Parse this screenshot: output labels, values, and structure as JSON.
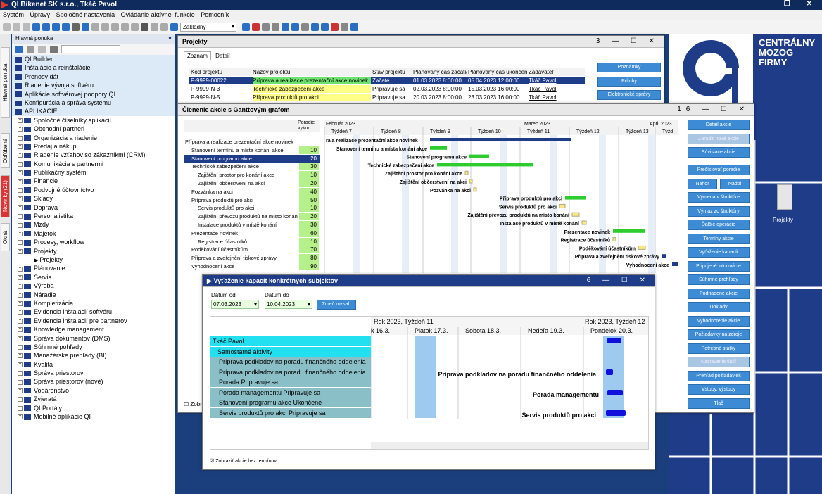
{
  "app": {
    "title": "QI Bikenet SK s.r.o., Tkáč Pavol"
  },
  "menu": [
    "Systém",
    "Úpravy",
    "Spoločné nastavenia",
    "Ovládanie aktívnej funkcie",
    "Pomocník"
  ],
  "toolbar": {
    "profile": "Základný"
  },
  "vtabs": [
    "Hlavná ponuka",
    "Obľúbené",
    "Novinky (21)",
    "Okná"
  ],
  "nav": {
    "header": "Hlavná ponuka",
    "items": [
      {
        "label": "QI Builder",
        "lvl": 0,
        "hl": true
      },
      {
        "label": "Inštalácie a reinštalácie",
        "lvl": 0,
        "hl": true
      },
      {
        "label": "Prenosy dát",
        "lvl": 0,
        "hl": true
      },
      {
        "label": "Riadenie vývoja softvéru",
        "lvl": 0,
        "hl": true
      },
      {
        "label": "Aplikácie softvérovej podpory QI",
        "lvl": 0,
        "hl": true
      },
      {
        "label": "Konfigurácia a správa systému",
        "lvl": 0,
        "hl": true
      },
      {
        "label": "APLIKÁCIE",
        "lvl": 0,
        "hl": true
      },
      {
        "label": "Spoločné číselníky aplikácií",
        "lvl": 1
      },
      {
        "label": "Obchodní partneri",
        "lvl": 1
      },
      {
        "label": "Organizácia a riadenie",
        "lvl": 1
      },
      {
        "label": "Predaj a nákup",
        "lvl": 1
      },
      {
        "label": "Riadenie vzťahov so zákazníkmi (CRM)",
        "lvl": 1
      },
      {
        "label": "Komunikácia s partnermi",
        "lvl": 1
      },
      {
        "label": "Publikačný systém",
        "lvl": 1
      },
      {
        "label": "Financie",
        "lvl": 1
      },
      {
        "label": "Podvojné účtovníctvo",
        "lvl": 1
      },
      {
        "label": "Sklady",
        "lvl": 1
      },
      {
        "label": "Doprava",
        "lvl": 1
      },
      {
        "label": "Personalistika",
        "lvl": 1
      },
      {
        "label": "Mzdy",
        "lvl": 1
      },
      {
        "label": "Majetok",
        "lvl": 1
      },
      {
        "label": "Procesy, workflow",
        "lvl": 1
      },
      {
        "label": "Projekty",
        "lvl": 1
      },
      {
        "label": "Projekty",
        "lvl": 2
      },
      {
        "label": "Plánovanie",
        "lvl": 1
      },
      {
        "label": "Servis",
        "lvl": 1
      },
      {
        "label": "Výroba",
        "lvl": 1
      },
      {
        "label": "Náradie",
        "lvl": 1
      },
      {
        "label": "Kompletizácia",
        "lvl": 1
      },
      {
        "label": "Evidencia inštalácií softvéru",
        "lvl": 1
      },
      {
        "label": "Evidencia inštalácií pre partnerov",
        "lvl": 1
      },
      {
        "label": "Knowledge management",
        "lvl": 1
      },
      {
        "label": "Správa dokumentov (DMS)",
        "lvl": 1
      },
      {
        "label": "Súhrnné pohľady",
        "lvl": 1
      },
      {
        "label": "Manažérske prehľady (BI)",
        "lvl": 1
      },
      {
        "label": "Kvalita",
        "lvl": 1
      },
      {
        "label": "Správa priestorov",
        "lvl": 1
      },
      {
        "label": "Správa priestorov (nové)",
        "lvl": 1
      },
      {
        "label": "Vodárenstvo",
        "lvl": 1
      },
      {
        "label": "Zvieratá",
        "lvl": 1
      },
      {
        "label": "QI Portály",
        "lvl": 1
      },
      {
        "label": "Mobilné aplikácie QI",
        "lvl": 1
      }
    ]
  },
  "brand": [
    "CENTRÁLNY",
    "MOZOG",
    "FIRMY"
  ],
  "desktop_icon": "Projekty",
  "projekty": {
    "title": "Projekty",
    "count": "3",
    "tabs": [
      "Zoznam",
      "Detail"
    ],
    "cols": [
      "Kód projektu",
      "Názov projektu",
      "Stav projektu",
      "Plánovaný čas začatia",
      "Plánovaný čas ukončenia",
      "Zadávateľ"
    ],
    "rows": [
      [
        "P-9999-00022",
        "Príprava a realizace prezentační akce novinek",
        "Začaté",
        "01.03.2023 8:00:00",
        "05.04.2023 12:00:00",
        "Tkáč Pavol"
      ],
      [
        "P-9999-N-3",
        "Technické zabezpečení akce",
        "Pripravuje sa",
        "02.03.2023 8:00:00",
        "15.03.2023 16:00:00",
        "Tkáč Pavol"
      ],
      [
        "P-9999-N-5",
        "Příprava produktů pro akci",
        "Pripravuje sa",
        "20.03.2023 8:00:00",
        "23.03.2023 16:00:00",
        "Tkáč Pavol"
      ]
    ],
    "buttons": [
      "Poznámky",
      "Prílohy",
      "Elektronické správy"
    ]
  },
  "gantt": {
    "title": "Členenie akcie s Ganttovým grafom",
    "count": "16",
    "col2": "Poradie vykon...",
    "months": [
      "Február 2023",
      "Marec 2023",
      "April 2023"
    ],
    "weeks": [
      "Týždeň 7",
      "Týždeň 8",
      "Týždeň 9",
      "Týždeň 10",
      "Týždeň 11",
      "Týždeň 12",
      "Týždeň 13",
      "Týžd"
    ],
    "rows": [
      {
        "name": "Příprava a realizace prezentační akce novinek",
        "ord": "",
        "lvl": 0,
        "bar": "ra a realizace prezentační akce novinek"
      },
      {
        "name": "Stanovení termínu a místa konání akce",
        "ord": "10",
        "lvl": 1,
        "bar": "Stanovení termínu a místa konání akce"
      },
      {
        "name": "Stanovení programu akce",
        "ord": "20",
        "lvl": 1,
        "sel": true,
        "bar": "Stanovení programu akce"
      },
      {
        "name": "Technické zabezpečení akce",
        "ord": "30",
        "lvl": 1,
        "bar": "Technické zabezpečení akce"
      },
      {
        "name": "Zajištění prostor pro konání akce",
        "ord": "10",
        "lvl": 2,
        "bar": "Zajištění prostor pro konání akce"
      },
      {
        "name": "Zajištění občerstvení na akci",
        "ord": "20",
        "lvl": 2,
        "bar": "Zajištění občerstvení na akci"
      },
      {
        "name": "Pozvánka na akci",
        "ord": "40",
        "lvl": 1,
        "bar": "Pozvánka na akci"
      },
      {
        "name": "Příprava produktů pro akci",
        "ord": "50",
        "lvl": 1,
        "bar": "Příprava produktů pro akci"
      },
      {
        "name": "Servis produktů pro akci",
        "ord": "10",
        "lvl": 2,
        "bar": "Servis produktů pro akci"
      },
      {
        "name": "Zajištění převozu produktů na místo konání",
        "ord": "20",
        "lvl": 2,
        "bar": "Zajištění převozu produktů na místo konání"
      },
      {
        "name": "Instalace produktů v místě konání",
        "ord": "30",
        "lvl": 2,
        "bar": "Instalace produktů v místě konání"
      },
      {
        "name": "Prezentace novinek",
        "ord": "60",
        "lvl": 1,
        "bar": "Prezentace novinek"
      },
      {
        "name": "Registrace účastníků",
        "ord": "10",
        "lvl": 2,
        "bar": "Registrace účastníků"
      },
      {
        "name": "Poděkování účastníkům",
        "ord": "70",
        "lvl": 1,
        "bar": "Poděkování účastníkům"
      },
      {
        "name": "Příprava a zveřejnění tiskové zprávy",
        "ord": "80",
        "lvl": 1,
        "bar": "Příprava a zveřejnění tiskové zprávy"
      },
      {
        "name": "Vyhodnocení akce",
        "ord": "90",
        "lvl": 1,
        "bar": "Vyhodnocení akce"
      }
    ],
    "checkbox": "Zobra",
    "buttons": [
      "Detail akcie",
      "Zaradiť nové akcie",
      "Súvisiace akcie",
      "Prečíslovať poradie",
      "Nahor",
      "Nadol",
      "Výmena v štruktúre",
      "Výmaz zo štruktúry",
      "Ďalšie operácie",
      "Termíny akcie",
      "Vyťaženie kapacít",
      "Pripojené informácie",
      "Súhrnné prehľady",
      "Podriadené akcie",
      "Doklady",
      "Vyhodnotenie akcie",
      "Požiadavky na zdroje",
      "Potrebné statky",
      "Nastavenie tlačí",
      "Prehľad požiadaviek",
      "Vstupy, výstupy",
      "Tlač"
    ]
  },
  "kap": {
    "title": "Vyťaženie kapacít konkrétnych subjektov",
    "count": "6",
    "date_from_label": "Dátum od",
    "date_from": "07.03.2023",
    "date_to_label": "Dátum do",
    "date_to": "10.04.2023",
    "change_btn": "Zmeň rozsah",
    "hdr1": [
      "Rok 2023, Týždeň 11",
      "Rok 2023, Týždeň 12"
    ],
    "hdr2": [
      "k 16.3.",
      "Piatok 17.3.",
      "Sobota 18.3.",
      "Nedeľa 19.3.",
      "Pondelok 20.3."
    ],
    "rows": [
      "Tkáč Pavol",
      "Samostatné aktivity",
      "Príprava podkladov na  poradu finančného oddelenia",
      "Príprava podkladov na  poradu finančného oddelenia",
      "Porada Pripravuje sa",
      "Porada managementu Pripravuje sa",
      "Stanovení programu akce Ukončené",
      "Servis produktů pro akci Pripravuje sa"
    ],
    "bar_labels": [
      "Príprava podkladov na  poradu finančného oddelenia",
      "Porada managementu",
      "Servis produktů pro akci"
    ],
    "checkbox": "Zobraziť akcie bez termínov"
  }
}
